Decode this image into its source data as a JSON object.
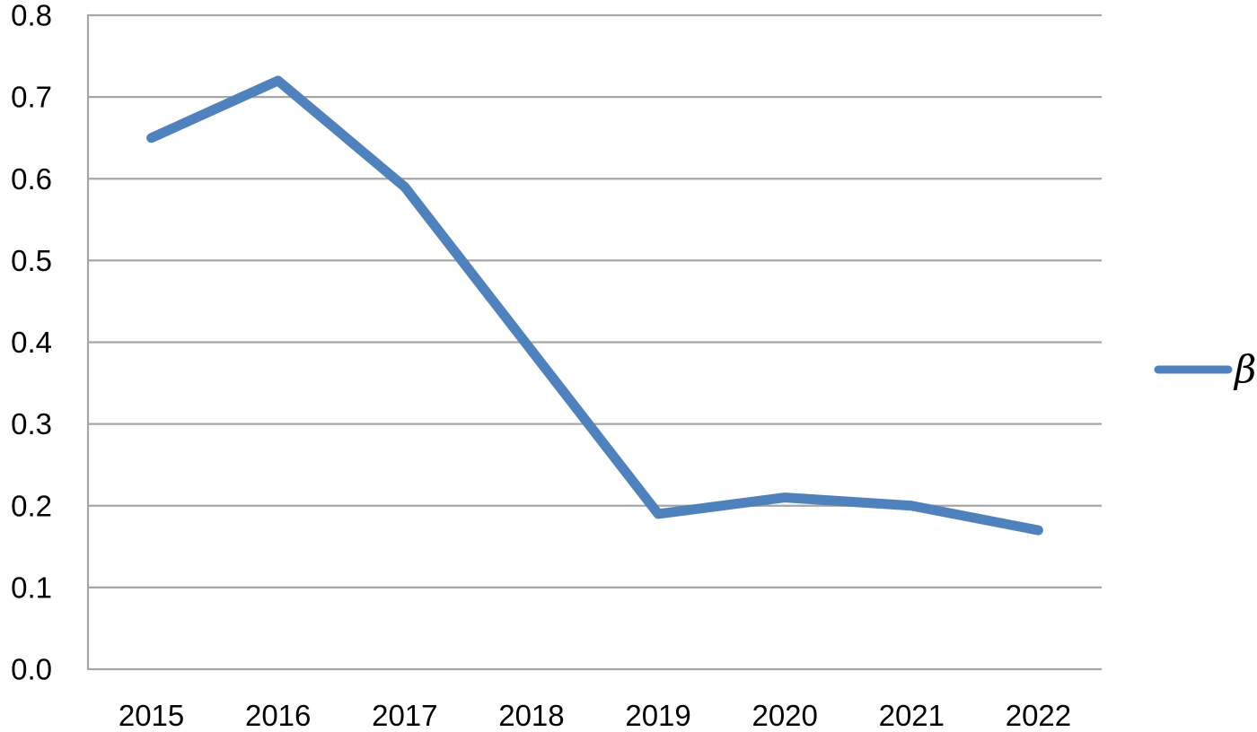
{
  "chart_data": {
    "type": "line",
    "categories": [
      "2015",
      "2016",
      "2017",
      "2018",
      "2019",
      "2020",
      "2021",
      "2022"
    ],
    "series": [
      {
        "name": "β",
        "values": [
          0.65,
          0.72,
          0.59,
          0.39,
          0.19,
          0.21,
          0.2,
          0.17
        ],
        "color": "#4F81BD"
      }
    ],
    "ylim": [
      0.0,
      0.8
    ],
    "ytick_labels": [
      "0.0",
      "0.1",
      "0.2",
      "0.3",
      "0.4",
      "0.5",
      "0.6",
      "0.7",
      "0.8"
    ],
    "xtick_labels": [
      "2015",
      "2016",
      "2017",
      "2018",
      "2019",
      "2020",
      "2021",
      "2022"
    ],
    "grid": "horizontal",
    "legend_position": "right-middle",
    "colors": {
      "series_line": "#4F81BD",
      "gridline": "#A6A6A6",
      "axis_line": "#A6A6A6",
      "tick_text": "#000000",
      "background": "#FFFFFF"
    }
  }
}
